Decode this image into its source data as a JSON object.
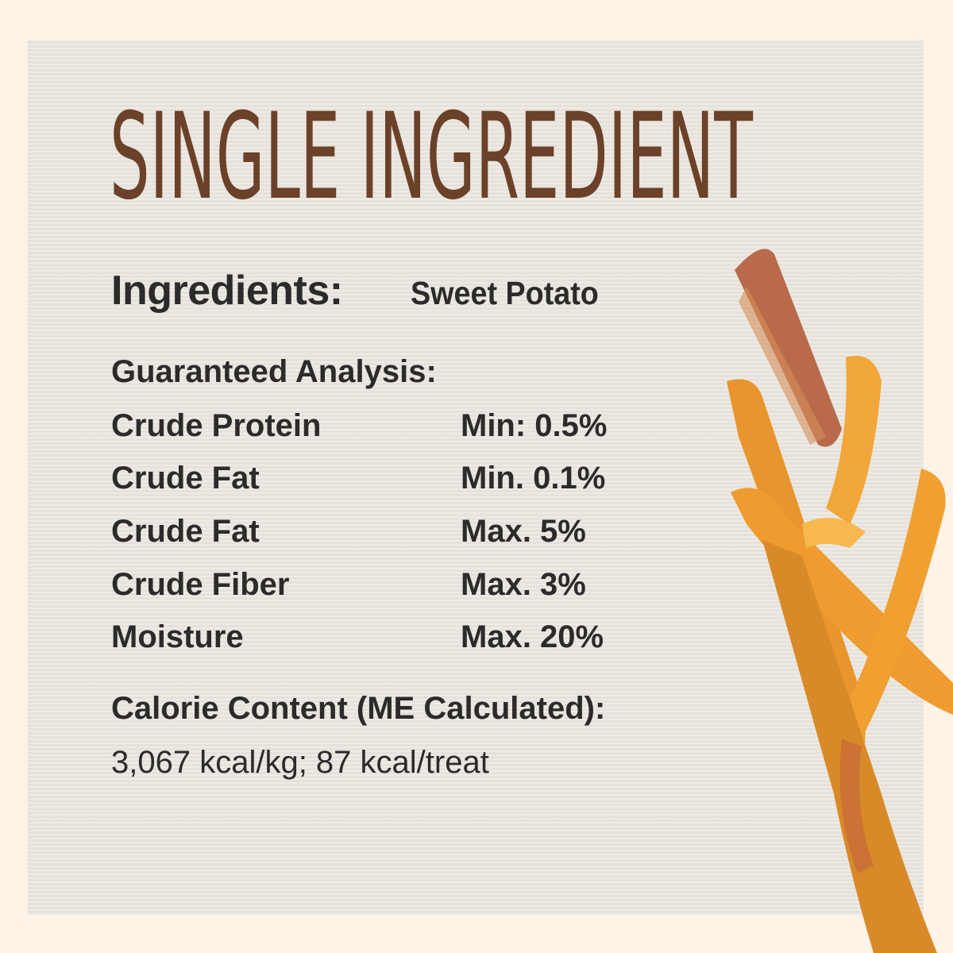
{
  "title": "SINGLE INGREDIENT",
  "ingredients": {
    "label": "Ingredients:",
    "value": "Sweet Potato"
  },
  "analysis": {
    "heading": "Guaranteed Analysis:",
    "rows": [
      {
        "label": "Crude Protein",
        "value": "Min: 0.5%"
      },
      {
        "label": "Crude Fat",
        "value": "Min. 0.1%"
      },
      {
        "label": "Crude Fat",
        "value": "Max. 5%"
      },
      {
        "label": "Crude Fiber",
        "value": "Max. 3%"
      },
      {
        "label": "Moisture",
        "value": "Max. 20%"
      }
    ]
  },
  "calories": {
    "heading": "Calorie Content (ME Calculated):",
    "value": "3,067 kcal/kg; 87 kcal/treat"
  },
  "colors": {
    "background": "#fdf3e7",
    "panel": "#ebe6df",
    "title": "#6b4129",
    "text": "#2b2b2b",
    "treat": "#f0a030"
  }
}
